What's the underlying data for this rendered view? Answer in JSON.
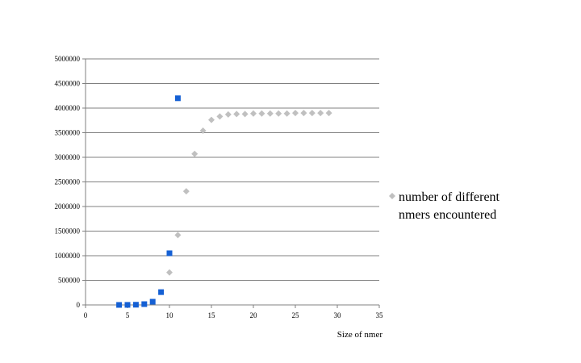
{
  "chart_data": {
    "type": "scatter",
    "title": "",
    "xlabel": "Size of nmer",
    "ylabel": "",
    "xlim": [
      0,
      35
    ],
    "ylim": [
      0,
      5000000
    ],
    "x_ticks": [
      "0",
      "5",
      "10",
      "15",
      "20",
      "25",
      "30",
      "35"
    ],
    "y_ticks": [
      "0",
      "500000",
      "1000000",
      "1500000",
      "2000000",
      "2500000",
      "3000000",
      "3500000",
      "4000000",
      "4500000",
      "5000000"
    ],
    "grid": "horizontal",
    "legend_position": "right",
    "series": [
      {
        "marker": "square",
        "color": "#1560d4",
        "in_legend": false,
        "x": [
          4,
          5,
          6,
          7,
          8,
          9,
          10,
          11
        ],
        "y": [
          0,
          1000,
          4000,
          16000,
          65000,
          260000,
          1050000,
          4200000
        ]
      },
      {
        "name": "number of different nmers encountered",
        "legend_lines": [
          "number of different",
          "nmers encountered"
        ],
        "marker": "diamond",
        "color": "#c0c0c0",
        "in_legend": true,
        "x": [
          10,
          11,
          12,
          13,
          14,
          15,
          16,
          17,
          18,
          19,
          20,
          21,
          22,
          23,
          24,
          25,
          26,
          27,
          28,
          29
        ],
        "y": [
          660000,
          1420000,
          2310000,
          3070000,
          3540000,
          3760000,
          3830000,
          3870000,
          3880000,
          3880000,
          3890000,
          3890000,
          3890000,
          3890000,
          3890000,
          3900000,
          3900000,
          3900000,
          3900000,
          3900000
        ]
      }
    ]
  }
}
